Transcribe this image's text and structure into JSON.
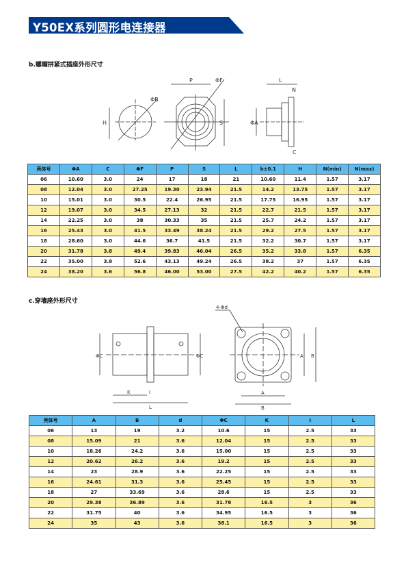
{
  "header": {
    "title": "Y50EX系列圆形电连接器",
    "banner_color": "#003a8c"
  },
  "section_b": {
    "title": "b.螺帽拼紧式插座外形尺寸",
    "drawing_labels": {
      "H": "H",
      "phiB": "ΦB",
      "P": "P",
      "phiF": "ΦF",
      "S": "S",
      "L": "L",
      "N": "N",
      "phiA": "ΦA",
      "C": "C"
    },
    "table": {
      "headers": [
        "壳体号",
        "ΦA",
        "C",
        "ΦF",
        "P",
        "S",
        "L",
        "b±0.1",
        "H",
        "N(min)",
        "N(max)"
      ],
      "rows": [
        [
          "06",
          "10.60",
          "3.0",
          "24",
          "17",
          "18",
          "21",
          "10.60",
          "11.4",
          "1.57",
          "3.17"
        ],
        [
          "08",
          "12.04",
          "3.0",
          "27.25",
          "19.30",
          "23.94",
          "21.5",
          "14.2",
          "13.75",
          "1.57",
          "3.17"
        ],
        [
          "10",
          "15.01",
          "3.0",
          "30.5",
          "22.4",
          "26.95",
          "21.5",
          "17.75",
          "16.95",
          "1.57",
          "3.17"
        ],
        [
          "12",
          "19.07",
          "3.0",
          "34.5",
          "27.13",
          "32",
          "21.5",
          "22.7",
          "21.5",
          "1.57",
          "3.17"
        ],
        [
          "14",
          "22.25",
          "3.0",
          "38",
          "30.33",
          "35",
          "21.5",
          "25.7",
          "24.2",
          "1.57",
          "3.17"
        ],
        [
          "16",
          "25.43",
          "3.0",
          "41.5",
          "33.49",
          "38.24",
          "21.5",
          "29.2",
          "27.5",
          "1.57",
          "3.17"
        ],
        [
          "18",
          "28.60",
          "3.0",
          "44.6",
          "36.7",
          "41.5",
          "21.5",
          "32.2",
          "30.7",
          "1.57",
          "3.17"
        ],
        [
          "20",
          "31.78",
          "3.8",
          "49.4",
          "39.83",
          "46.04",
          "26.5",
          "35.2",
          "33.8",
          "1.57",
          "6.35"
        ],
        [
          "22",
          "35.00",
          "3.8",
          "52.6",
          "43.13",
          "49.24",
          "26.5",
          "38.2",
          "37",
          "1.57",
          "6.35"
        ],
        [
          "24",
          "38.20",
          "3.6",
          "56.8",
          "46.00",
          "53.00",
          "27.5",
          "42.2",
          "40.2",
          "1.57",
          "6.35"
        ]
      ]
    }
  },
  "section_c": {
    "title": "c.穿墙座外形尺寸",
    "drawing_labels": {
      "phiC1": "ΦC",
      "phiC2": "ΦC",
      "K": "K",
      "I": "I",
      "L": "L",
      "d": "4-Φd",
      "A1": "A",
      "B1": "B",
      "A2": "A",
      "B2": "B"
    },
    "table": {
      "headers": [
        "壳体号",
        "A",
        "B",
        "d",
        "ΦC",
        "K",
        "I",
        "L"
      ],
      "rows": [
        [
          "06",
          "13",
          "19",
          "3.2",
          "10.6",
          "15",
          "2.5",
          "33"
        ],
        [
          "08",
          "15.09",
          "21",
          "3.6",
          "12.04",
          "15",
          "2.5",
          "33"
        ],
        [
          "10",
          "18.26",
          "24.2",
          "3.6",
          "15.00",
          "15",
          "2.5",
          "33"
        ],
        [
          "12",
          "20.62",
          "26.2",
          "3.6",
          "19.2",
          "15",
          "2.5",
          "33"
        ],
        [
          "14",
          "23",
          "28.9",
          "3.6",
          "22.25",
          "15",
          "2.5",
          "33"
        ],
        [
          "16",
          "24.61",
          "31.3",
          "3.6",
          "25.45",
          "15",
          "2.5",
          "33"
        ],
        [
          "18",
          "27",
          "33.69",
          "3.6",
          "28.6",
          "15",
          "2.5",
          "33"
        ],
        [
          "20",
          "29.38",
          "36.89",
          "3.6",
          "31.78",
          "16.5",
          "3",
          "36"
        ],
        [
          "22",
          "31.75",
          "40",
          "3.6",
          "34.95",
          "16.5",
          "3",
          "36"
        ],
        [
          "24",
          "35",
          "43",
          "3.6",
          "38.1",
          "16.5",
          "3",
          "36"
        ]
      ]
    }
  },
  "colors": {
    "header_bg": "#5cbcf0",
    "alt_row": "#fdf1a9"
  }
}
